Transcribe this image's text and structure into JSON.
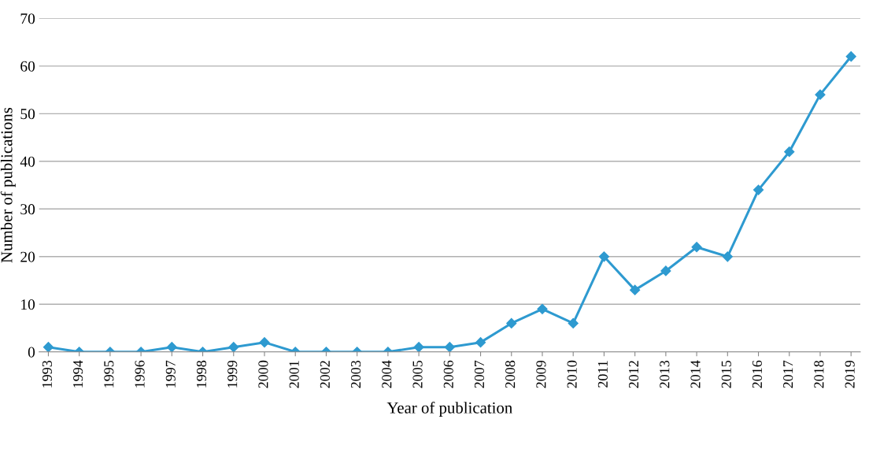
{
  "chart_data": {
    "type": "line",
    "xlabel": "Year of publication",
    "ylabel": "Number of publications",
    "categories": [
      "1993",
      "1994",
      "1995",
      "1996",
      "1997",
      "1998",
      "1999",
      "2000",
      "2001",
      "2002",
      "2003",
      "2004",
      "2005",
      "2006",
      "2007",
      "2008",
      "2009",
      "2010",
      "2011",
      "2012",
      "2013",
      "2014",
      "2015",
      "2016",
      "2017",
      "2018",
      "2019"
    ],
    "series": [
      {
        "color": "#2e9ad0",
        "values": [
          1,
          0,
          0,
          0,
          1,
          0,
          1,
          2,
          0,
          0,
          0,
          0,
          1,
          1,
          2,
          6,
          9,
          6,
          20,
          13,
          17,
          22,
          20,
          34,
          42,
          54,
          62
        ]
      }
    ],
    "ylim": [
      0,
      70
    ],
    "yticks": [
      0,
      10,
      20,
      30,
      40,
      50,
      60,
      70
    ],
    "grid": "y",
    "marker": "diamond",
    "line_style": "solid"
  }
}
